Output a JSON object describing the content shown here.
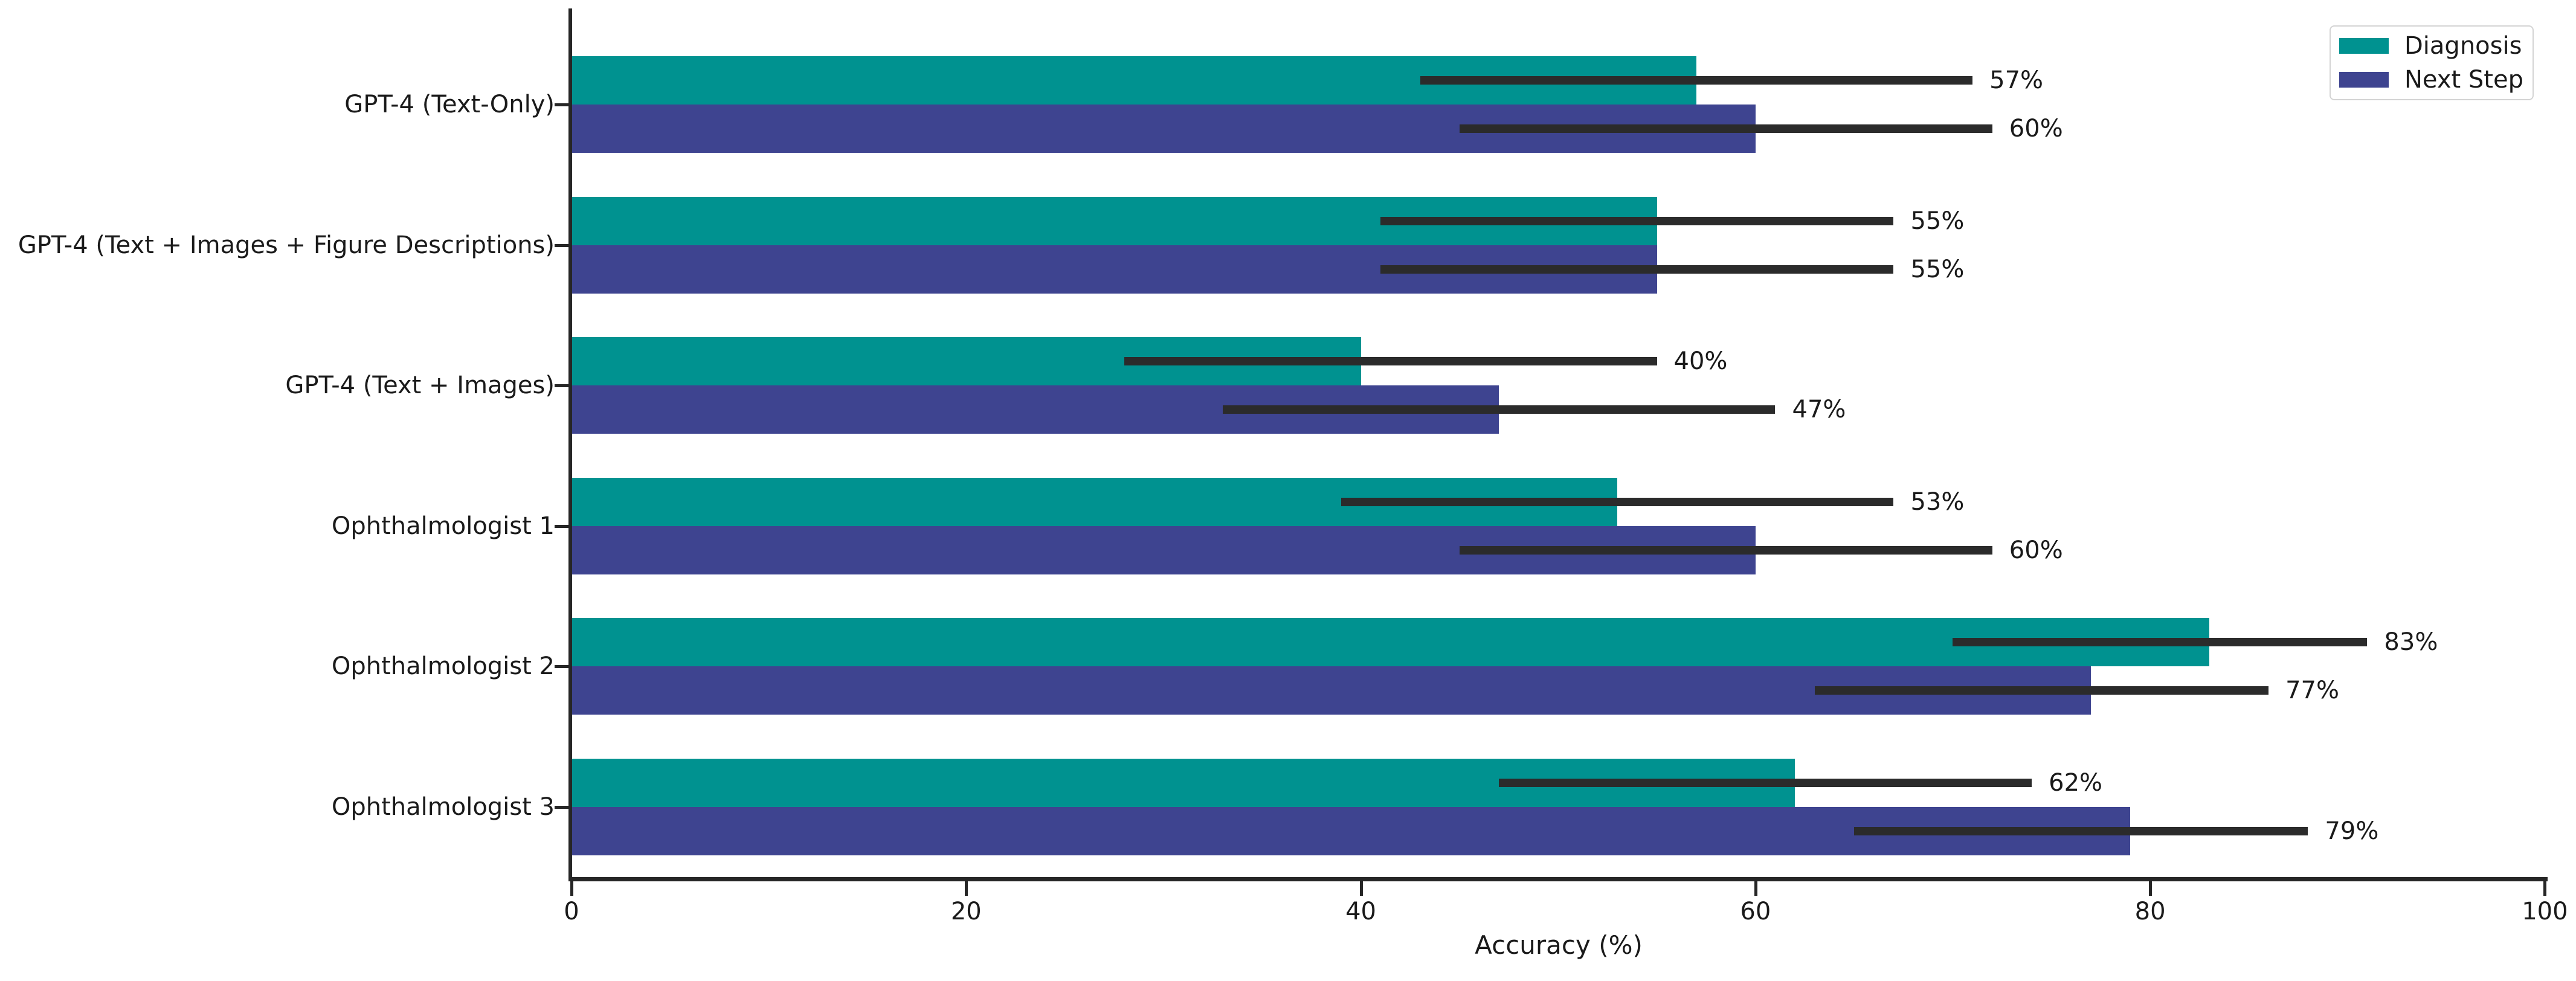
{
  "chart_data": {
    "type": "bar",
    "orientation": "horizontal",
    "xlabel": "Accuracy (%)",
    "xlim": [
      0,
      100
    ],
    "xticks": [
      0,
      20,
      40,
      60,
      80,
      100
    ],
    "grid": false,
    "legend_position": "upper right",
    "categories": [
      "GPT-4 (Text-Only)",
      "GPT-4 (Text + Images + Figure Descriptions)",
      "GPT-4 (Text + Images)",
      "Ophthalmologist 1",
      "Ophthalmologist 2",
      "Ophthalmologist 3"
    ],
    "series": [
      {
        "name": "Diagnosis",
        "color": "#009290",
        "values": [
          57,
          55,
          40,
          53,
          83,
          62
        ],
        "value_labels": [
          "57%",
          "55%",
          "40%",
          "53%",
          "83%",
          "62%"
        ],
        "error_low": [
          43,
          41,
          28,
          39,
          70,
          47
        ],
        "error_high": [
          71,
          67,
          55,
          67,
          91,
          74
        ]
      },
      {
        "name": "Next Step",
        "color": "#3e4490",
        "values": [
          60,
          55,
          47,
          60,
          77,
          79
        ],
        "value_labels": [
          "60%",
          "55%",
          "47%",
          "60%",
          "77%",
          "79%"
        ],
        "error_low": [
          45,
          41,
          33,
          45,
          63,
          65
        ],
        "error_high": [
          72,
          67,
          61,
          72,
          86,
          88
        ]
      }
    ]
  }
}
